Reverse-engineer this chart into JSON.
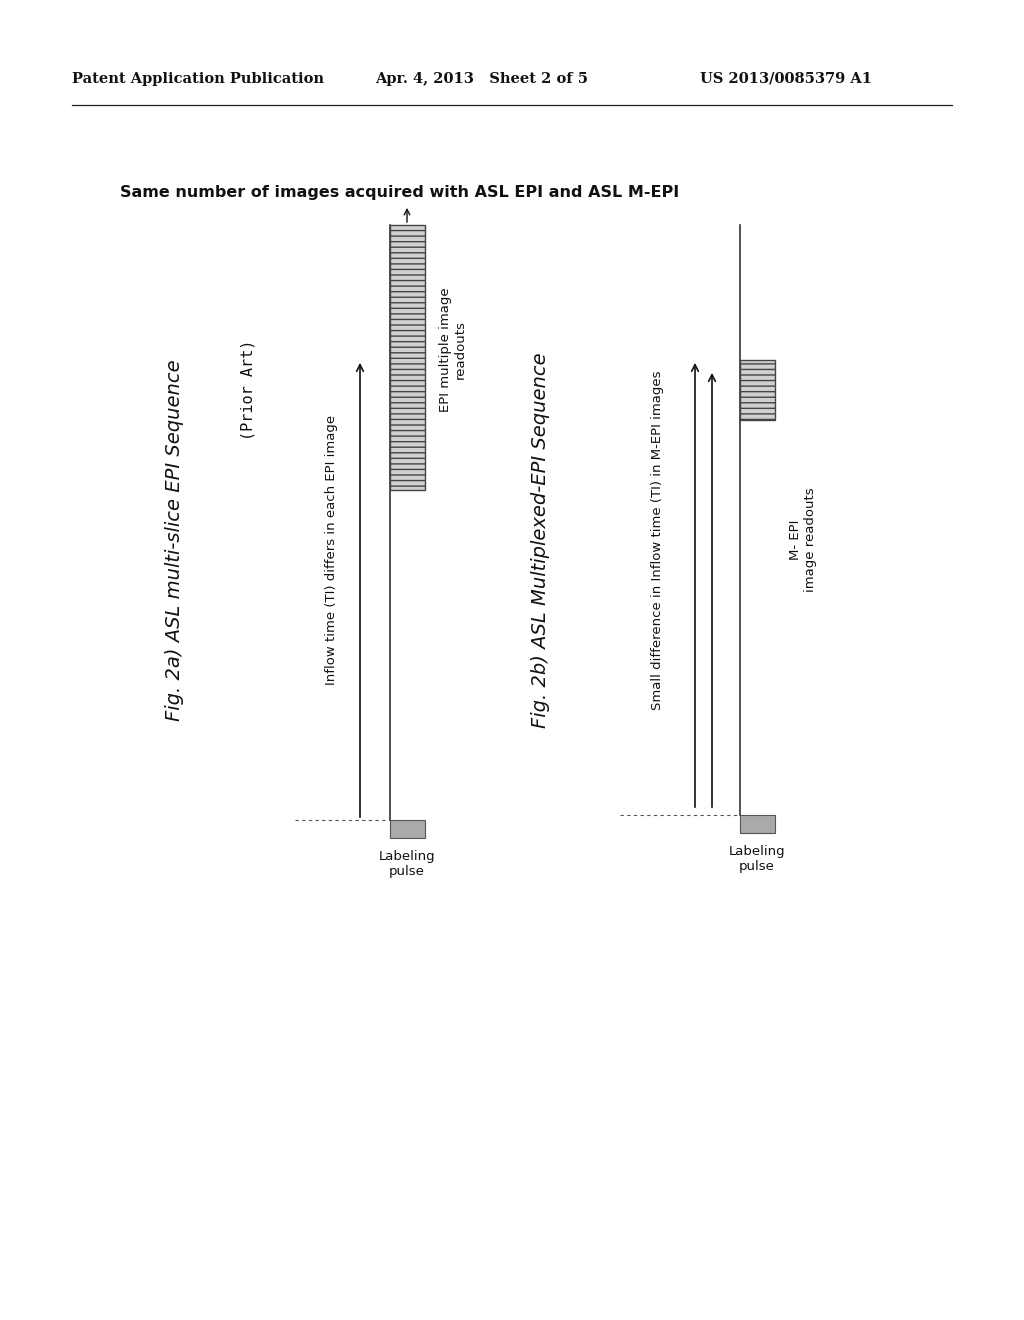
{
  "background_color": "#ffffff",
  "header_left": "Patent Application Publication",
  "header_mid": "Apr. 4, 2013   Sheet 2 of 5",
  "header_right": "US 2013/0085379 A1",
  "top_label": "Same number of images acquired with ASL EPI and ASL M-EPI",
  "fig2a_label": "Fig. 2a) ASL multi-slice EPI Sequence",
  "fig2a_prior_art": "(Prior Art)",
  "fig2a_inflow_label": "Inflow time (TI) differs in each EPI image",
  "fig2a_epi_label": "EPI multiple image\nreadouts",
  "fig2a_labeling_label": "Labeling\npulse",
  "fig2b_label": "Fig. 2b) ASL Multiplexed-EPI Sequence",
  "fig2b_small_diff_label": "Small difference in Inflow time (TI) in M-EPI images",
  "fig2b_mepi_label": "M- EPI\nimage readouts",
  "fig2b_labeling_label": "Labeling\npulse"
}
